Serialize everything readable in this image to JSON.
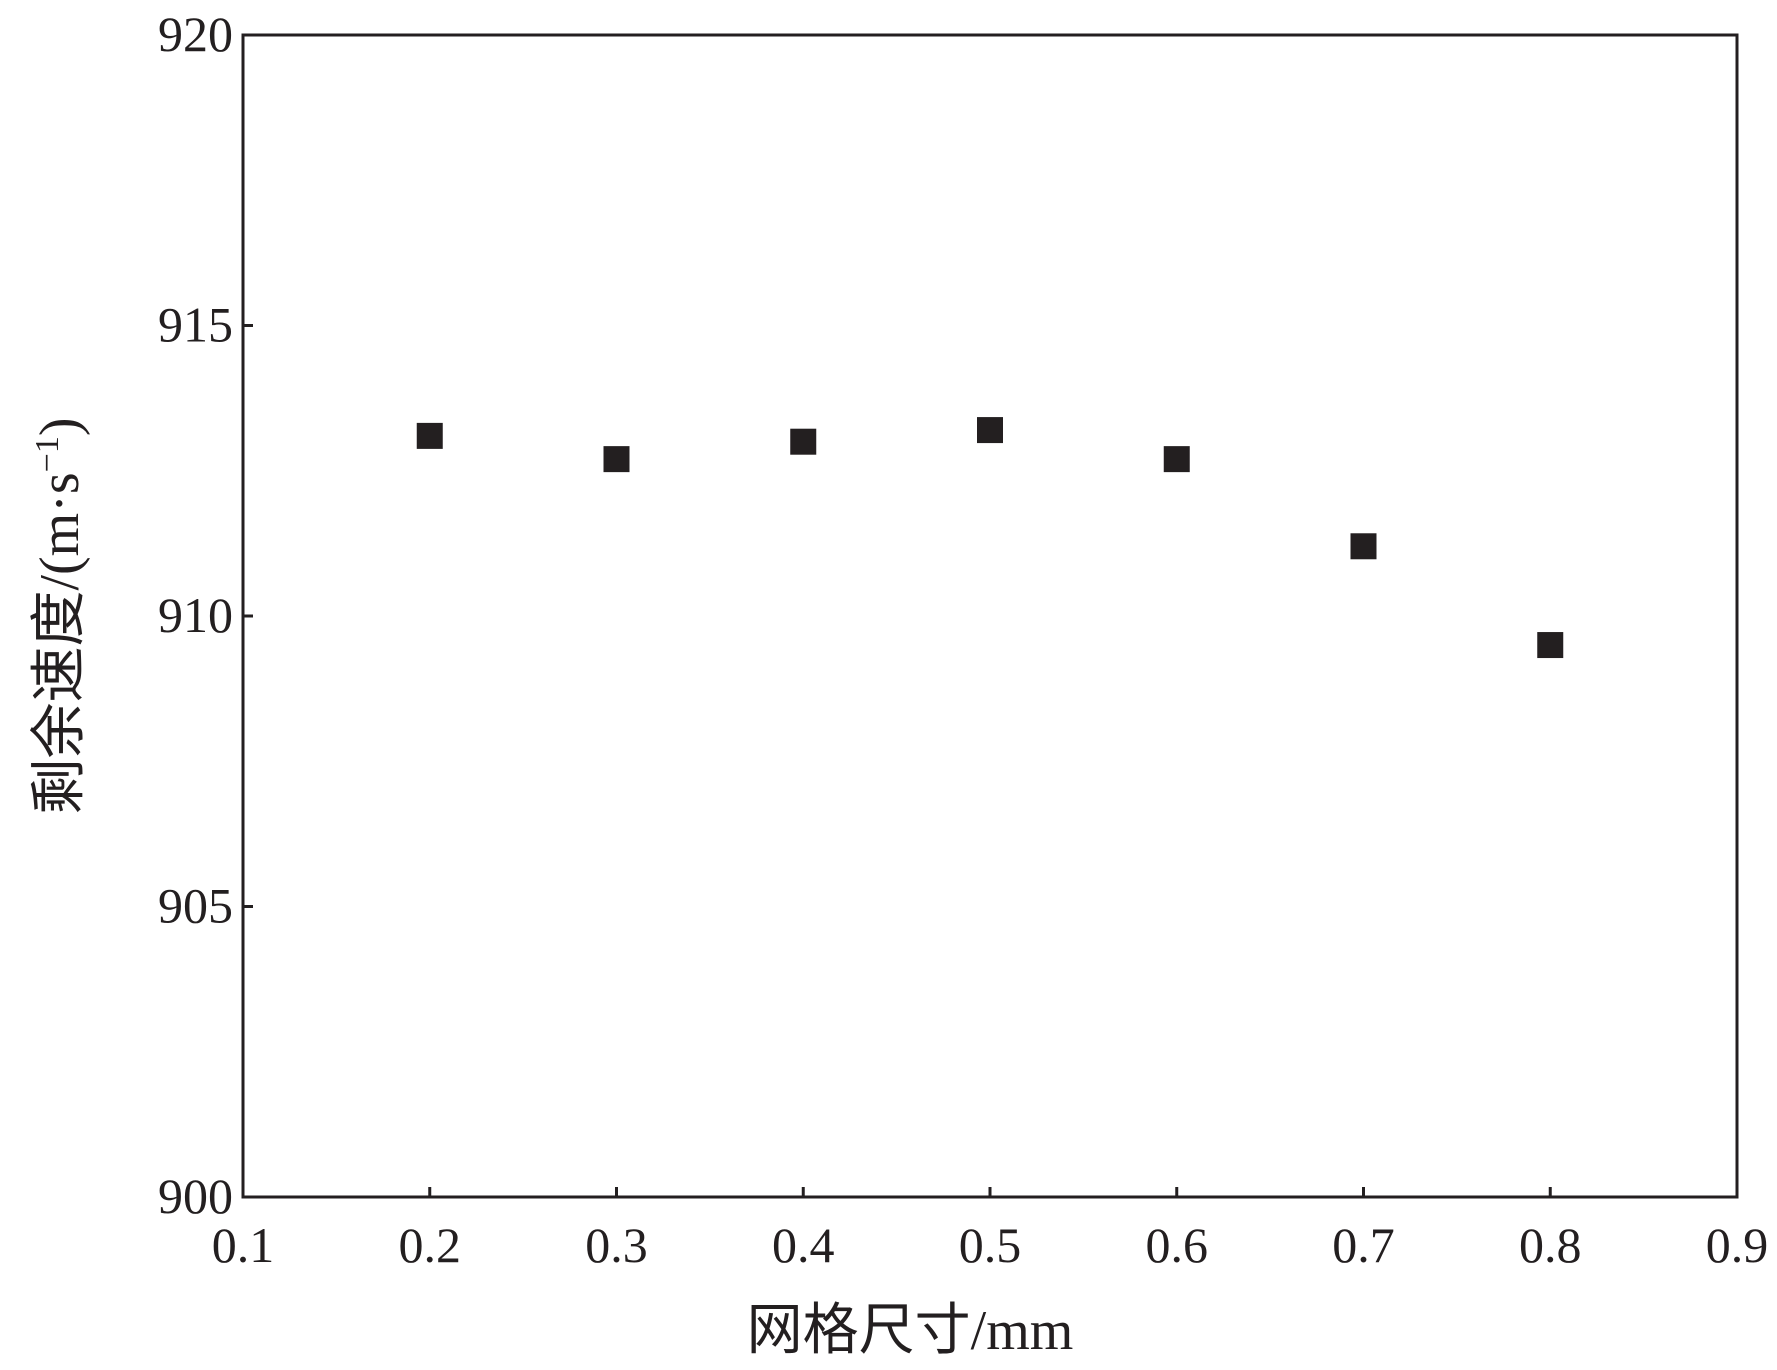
{
  "chart_data": {
    "type": "scatter",
    "title": "",
    "xlabel": "网格尺寸/mm",
    "ylabel_main": "剩余速度/(m·s",
    "ylabel_sup": "−1",
    "ylabel_close": ")",
    "xlim": [
      0.1,
      0.9
    ],
    "ylim": [
      900,
      920
    ],
    "x_ticks": [
      0.1,
      0.2,
      0.3,
      0.4,
      0.5,
      0.6,
      0.7,
      0.8,
      0.9
    ],
    "x_tick_labels": [
      "0.1",
      "0.2",
      "0.3",
      "0.4",
      "0.5",
      "0.6",
      "0.7",
      "0.8",
      "0.9"
    ],
    "y_ticks": [
      900,
      905,
      910,
      915,
      920
    ],
    "y_tick_labels": [
      "900",
      "905",
      "910",
      "915",
      "920"
    ],
    "grid": false,
    "legend": "none",
    "marker_color": "#231f20",
    "series": [
      {
        "marker": "square",
        "x": [
          0.2,
          0.3,
          0.4,
          0.5,
          0.6,
          0.7,
          0.8
        ],
        "y": [
          913.1,
          912.7,
          913.0,
          913.2,
          912.7,
          911.2,
          909.5
        ]
      }
    ]
  }
}
